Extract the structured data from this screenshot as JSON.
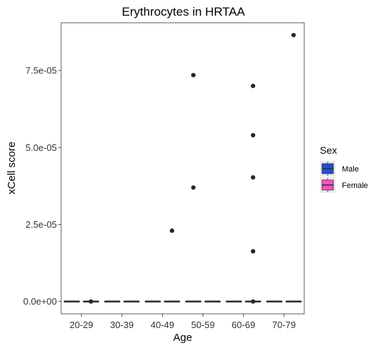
{
  "chart_data": {
    "type": "box",
    "title": "Erythrocytes in HRTAA",
    "xlabel": "Age",
    "ylabel": "xCell score",
    "categories": [
      "20-29",
      "30-39",
      "40-49",
      "50-59",
      "60-69",
      "70-79"
    ],
    "ylim": [
      -4e-06,
      9.05e-05
    ],
    "yticks": [
      0,
      2.5e-05,
      5e-05,
      7.5e-05
    ],
    "ytick_labels": [
      "0.0e+00",
      "2.5e-05",
      "5.0e-05",
      "7.5e-05"
    ],
    "grid": false,
    "legend": {
      "title": "Sex",
      "position": "right"
    },
    "series": [
      {
        "name": "Male",
        "color": "#1f4fd6",
        "boxes": [
          {
            "category": "20-29",
            "q1": 0,
            "median": 0,
            "q3": 0,
            "outliers": []
          },
          {
            "category": "30-39",
            "q1": 0,
            "median": 0,
            "q3": 0,
            "outliers": []
          },
          {
            "category": "40-49",
            "q1": 0,
            "median": 0,
            "q3": 0,
            "outliers": []
          },
          {
            "category": "50-59",
            "q1": 0,
            "median": 0,
            "q3": 0,
            "outliers": [
              7.35e-05,
              3.7e-05
            ]
          },
          {
            "category": "60-69",
            "q1": 0,
            "median": 0,
            "q3": 0,
            "outliers": []
          },
          {
            "category": "70-79",
            "q1": 0,
            "median": 0,
            "q3": 0,
            "outliers": []
          }
        ]
      },
      {
        "name": "Female",
        "color": "#ff4fc8",
        "boxes": [
          {
            "category": "20-29",
            "q1": 0,
            "median": 0,
            "q3": 0,
            "outliers": [
              0
            ]
          },
          {
            "category": "30-39",
            "q1": 0,
            "median": 0,
            "q3": 0,
            "outliers": []
          },
          {
            "category": "40-49",
            "q1": 0,
            "median": 0,
            "q3": 0,
            "outliers": [
              2.3e-05
            ]
          },
          {
            "category": "50-59",
            "q1": 0,
            "median": 0,
            "q3": 0,
            "outliers": []
          },
          {
            "category": "60-69",
            "q1": 0,
            "median": 0,
            "q3": 0,
            "outliers": [
              7e-05,
              5.4e-05,
              4.03e-05,
              1.63e-05,
              0
            ]
          },
          {
            "category": "70-79",
            "q1": 0,
            "median": 0,
            "q3": 0,
            "outliers": [
              8.65e-05
            ]
          }
        ]
      }
    ]
  }
}
